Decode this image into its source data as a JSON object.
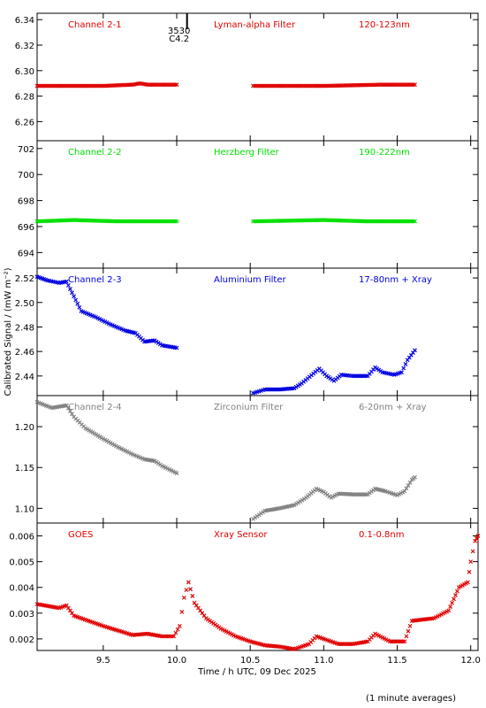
{
  "chart_data": {
    "type": "scatter",
    "xlabel": "Time / h UTC, 09 Dec 2025",
    "ylabel": "Calibrated Signal / (mW m⁻²)",
    "footnote": "(1 minute averages)",
    "marker": {
      "label_top": "3530",
      "label_bottom": "C4.2",
      "x": 10.07
    },
    "xlim": [
      9.05,
      12.05
    ],
    "xticks": [
      9.5,
      10.0,
      10.5,
      11.0,
      11.5,
      12.0
    ],
    "xtick_labels": [
      "9.5",
      "10.0",
      "10.5",
      "11.0",
      "11.5",
      "12.0"
    ],
    "panels": [
      {
        "name": "Channel 2-1",
        "filter": "Lyman-alpha Filter",
        "band": "120-123nm",
        "color": "#e00000",
        "ylim": [
          6.245,
          6.345
        ],
        "yticks": [
          6.26,
          6.28,
          6.3,
          6.32,
          6.34
        ],
        "ytick_labels": [
          "6.26",
          "6.28",
          "6.30",
          "6.32",
          "6.34"
        ],
        "series": [
          [
            [
              9.05,
              6.288
            ],
            [
              9.5,
              6.288
            ],
            [
              9.7,
              6.289
            ],
            [
              9.75,
              6.29
            ],
            [
              9.8,
              6.289
            ],
            [
              10.0,
              6.289
            ]
          ],
          [
            [
              10.52,
              6.288
            ],
            [
              11.0,
              6.288
            ],
            [
              11.4,
              6.289
            ],
            [
              11.62,
              6.289
            ]
          ]
        ]
      },
      {
        "name": "Channel 2-2",
        "filter": "Herzberg Filter",
        "band": "190-222nm",
        "color": "#00e000",
        "ylim": [
          692.8,
          702.6
        ],
        "yticks": [
          694,
          696,
          698,
          700,
          702
        ],
        "ytick_labels": [
          "694",
          "696",
          "698",
          "700",
          "702"
        ],
        "series": [
          [
            [
              9.05,
              696.4
            ],
            [
              9.3,
              696.5
            ],
            [
              9.6,
              696.4
            ],
            [
              10.0,
              696.4
            ]
          ],
          [
            [
              10.52,
              696.4
            ],
            [
              11.0,
              696.5
            ],
            [
              11.3,
              696.4
            ],
            [
              11.62,
              696.4
            ]
          ]
        ]
      },
      {
        "name": "Channel 2-3",
        "filter": "Aluminium Filter",
        "band": "17-80nm + Xray",
        "color": "#0000e0",
        "ylim": [
          2.424,
          2.528
        ],
        "yticks": [
          2.44,
          2.46,
          2.48,
          2.5,
          2.52
        ],
        "ytick_labels": [
          "2.44",
          "2.46",
          "2.48",
          "2.50",
          "2.52"
        ],
        "series": [
          [
            [
              9.05,
              2.521
            ],
            [
              9.12,
              2.518
            ],
            [
              9.2,
              2.516
            ],
            [
              9.25,
              2.517
            ],
            [
              9.3,
              2.505
            ],
            [
              9.35,
              2.493
            ],
            [
              9.45,
              2.488
            ],
            [
              9.55,
              2.482
            ],
            [
              9.65,
              2.477
            ],
            [
              9.72,
              2.475
            ],
            [
              9.78,
              2.468
            ],
            [
              9.85,
              2.469
            ],
            [
              9.9,
              2.465
            ],
            [
              10.0,
              2.463
            ]
          ],
          [
            [
              10.52,
              2.426
            ],
            [
              10.6,
              2.429
            ],
            [
              10.7,
              2.429
            ],
            [
              10.8,
              2.43
            ],
            [
              10.85,
              2.434
            ],
            [
              10.93,
              2.442
            ],
            [
              10.97,
              2.446
            ],
            [
              11.02,
              2.44
            ],
            [
              11.07,
              2.436
            ],
            [
              11.12,
              2.441
            ],
            [
              11.2,
              2.44
            ],
            [
              11.3,
              2.44
            ],
            [
              11.35,
              2.447
            ],
            [
              11.4,
              2.443
            ],
            [
              11.48,
              2.441
            ],
            [
              11.53,
              2.443
            ],
            [
              11.57,
              2.453
            ],
            [
              11.62,
              2.461
            ]
          ]
        ]
      },
      {
        "name": "Channel 2-4",
        "filter": "Zirconium Filter",
        "band": "6-20nm + Xray",
        "color": "#808080",
        "ylim": [
          1.082,
          1.238
        ],
        "yticks": [
          1.1,
          1.15,
          1.2
        ],
        "ytick_labels": [
          "1.10",
          "1.15",
          "1.20"
        ],
        "series": [
          [
            [
              9.05,
              1.23
            ],
            [
              9.15,
              1.223
            ],
            [
              9.25,
              1.226
            ],
            [
              9.3,
              1.212
            ],
            [
              9.38,
              1.198
            ],
            [
              9.5,
              1.185
            ],
            [
              9.6,
              1.175
            ],
            [
              9.7,
              1.166
            ],
            [
              9.78,
              1.16
            ],
            [
              9.85,
              1.158
            ],
            [
              9.9,
              1.152
            ],
            [
              10.0,
              1.143
            ]
          ],
          [
            [
              10.52,
              1.087
            ],
            [
              10.6,
              1.097
            ],
            [
              10.7,
              1.1
            ],
            [
              10.8,
              1.104
            ],
            [
              10.88,
              1.113
            ],
            [
              10.95,
              1.124
            ],
            [
              11.0,
              1.12
            ],
            [
              11.05,
              1.113
            ],
            [
              11.1,
              1.118
            ],
            [
              11.2,
              1.117
            ],
            [
              11.3,
              1.117
            ],
            [
              11.35,
              1.124
            ],
            [
              11.42,
              1.121
            ],
            [
              11.5,
              1.116
            ],
            [
              11.55,
              1.121
            ],
            [
              11.6,
              1.135
            ],
            [
              11.62,
              1.138
            ]
          ]
        ]
      },
      {
        "name": "GOES",
        "filter": "Xray Sensor",
        "band": "0.1-0.8nm",
        "color": "#e00000",
        "ylim": [
          0.00155,
          0.0065
        ],
        "yticks": [
          0.002,
          0.003,
          0.004,
          0.005,
          0.006
        ],
        "ytick_labels": [
          "0.002",
          "0.003",
          "0.004",
          "0.005",
          "0.006"
        ],
        "series": [
          [
            [
              9.05,
              0.00335
            ],
            [
              9.2,
              0.0032
            ],
            [
              9.25,
              0.0033
            ],
            [
              9.3,
              0.0029
            ],
            [
              9.5,
              0.0025
            ],
            [
              9.7,
              0.00215
            ],
            [
              9.8,
              0.0022
            ],
            [
              9.9,
              0.0021
            ],
            [
              9.98,
              0.0021
            ],
            [
              10.02,
              0.0025
            ],
            [
              10.05,
              0.0036
            ],
            [
              10.08,
              0.0042
            ],
            [
              10.12,
              0.0034
            ],
            [
              10.2,
              0.0028
            ],
            [
              10.3,
              0.0024
            ],
            [
              10.4,
              0.0021
            ],
            [
              10.5,
              0.0019
            ],
            [
              10.6,
              0.00175
            ],
            [
              10.7,
              0.0017
            ],
            [
              10.8,
              0.0016
            ],
            [
              10.9,
              0.0018
            ],
            [
              10.95,
              0.0021
            ],
            [
              11.0,
              0.002
            ],
            [
              11.1,
              0.0018
            ],
            [
              11.2,
              0.0018
            ],
            [
              11.3,
              0.0019
            ],
            [
              11.35,
              0.0022
            ],
            [
              11.45,
              0.0019
            ],
            [
              11.55,
              0.0019
            ],
            [
              11.6,
              0.0027
            ],
            [
              11.75,
              0.0028
            ],
            [
              11.85,
              0.0031
            ],
            [
              11.92,
              0.004
            ],
            [
              11.98,
              0.0042
            ],
            [
              12.0,
              0.005
            ],
            [
              12.03,
              0.0058
            ],
            [
              12.05,
              0.006
            ]
          ]
        ]
      }
    ]
  }
}
